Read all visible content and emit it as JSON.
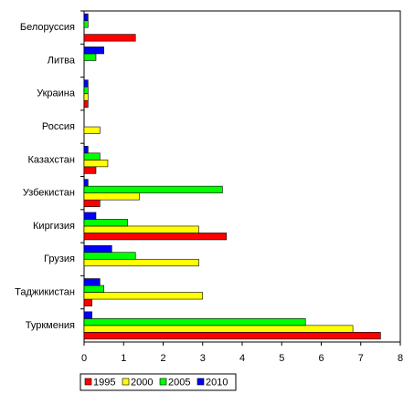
{
  "chart_data": {
    "type": "hbar",
    "categories": [
      "Белоруссия",
      "Литва",
      "Украина",
      "Россия",
      "Казахстан",
      "Узбекистан",
      "Киргизия",
      "Грузия",
      "Таджикистан",
      "Туркмения"
    ],
    "series": [
      {
        "name": "1995",
        "color": "#ff0000",
        "values": [
          1.3,
          0,
          0.1,
          0,
          0.3,
          0.4,
          3.6,
          0,
          0.2,
          7.5
        ]
      },
      {
        "name": "2000",
        "color": "#ffff00",
        "values": [
          0,
          0,
          0.1,
          0.4,
          0.6,
          1.4,
          2.9,
          2.9,
          3.0,
          6.8
        ]
      },
      {
        "name": "2005",
        "color": "#00ff00",
        "values": [
          0.1,
          0.3,
          0.1,
          0,
          0.4,
          3.5,
          1.1,
          1.3,
          0.5,
          5.6
        ]
      },
      {
        "name": "2010",
        "color": "#0000ff",
        "values": [
          0.1,
          0.5,
          0.1,
          0,
          0.1,
          0.1,
          0.3,
          0.7,
          0.4,
          0.2
        ]
      }
    ],
    "xlim": [
      0,
      8
    ],
    "xticks": [
      0,
      1,
      2,
      3,
      4,
      5,
      6,
      7,
      8
    ],
    "legend": "bottom"
  }
}
